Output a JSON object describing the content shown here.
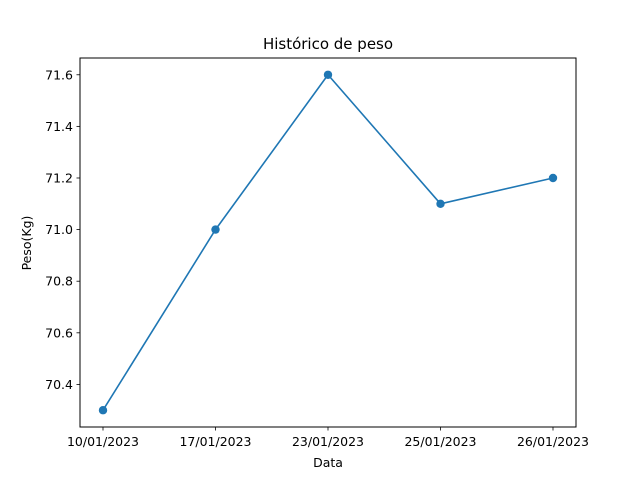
{
  "chart_data": {
    "type": "line",
    "title": "Histórico de peso",
    "xlabel": "Data",
    "ylabel": "Peso(Kg)",
    "categories": [
      "10/01/2023",
      "17/01/2023",
      "23/01/2023",
      "25/01/2023",
      "26/01/2023"
    ],
    "series": [
      {
        "values": [
          70.3,
          71.0,
          71.6,
          71.1,
          71.2
        ],
        "color": "#1f77b4",
        "marker": "circle"
      }
    ],
    "ylim": [
      70.235,
      71.665
    ],
    "yticks": [
      70.4,
      70.6,
      70.8,
      71.0,
      71.2,
      71.4,
      71.6
    ],
    "ytick_labels": [
      "70.4",
      "70.6",
      "70.8",
      "71.0",
      "71.2",
      "71.4",
      "71.6"
    ],
    "grid": false,
    "legend": "none"
  }
}
